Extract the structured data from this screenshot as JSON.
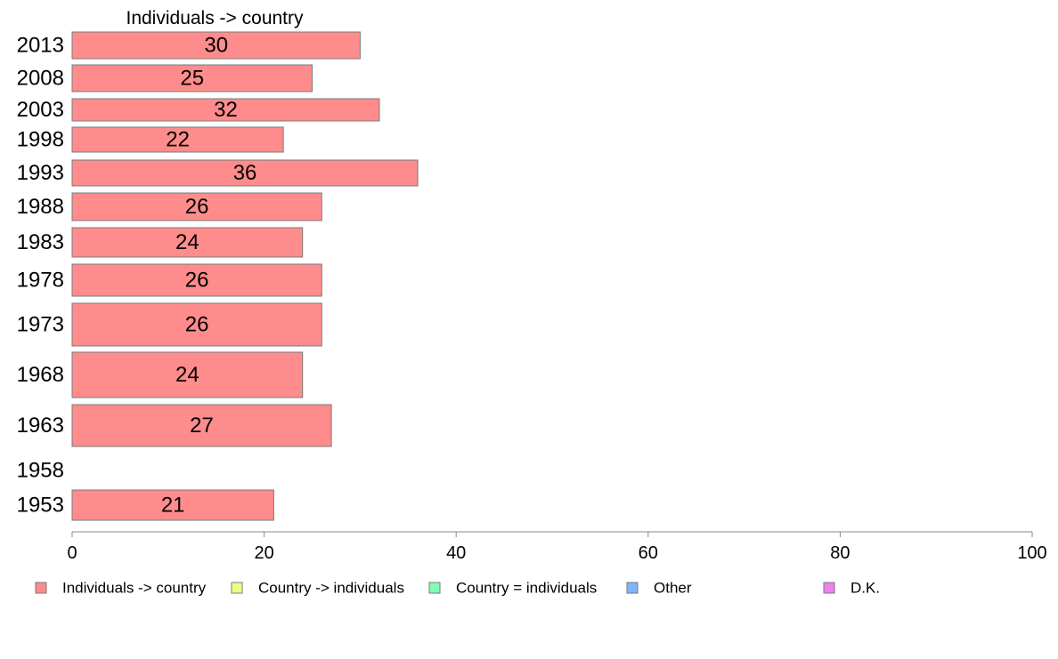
{
  "chart_data": {
    "type": "bar",
    "orientation": "horizontal",
    "title": "Individuals -> country",
    "categories": [
      "2013",
      "2008",
      "2003",
      "1998",
      "1993",
      "1988",
      "1983",
      "1978",
      "1973",
      "1968",
      "1963",
      "1958",
      "1953"
    ],
    "series": [
      {
        "name": "Individuals -> country",
        "color": "#ff8c8c",
        "values": [
          30,
          25,
          32,
          22,
          36,
          26,
          24,
          26,
          26,
          24,
          27,
          null,
          21
        ],
        "labels": [
          "30",
          "25",
          "32",
          "22",
          "36",
          "26",
          "24",
          "26",
          "26",
          "24",
          "27",
          "",
          "21"
        ]
      }
    ],
    "xlim": [
      0,
      100
    ],
    "xticks": [
      0,
      20,
      40,
      60,
      80,
      100
    ],
    "xtick_labels": [
      "0",
      "20",
      "40",
      "60",
      "80",
      "100"
    ],
    "grid": false,
    "legend_position": "bottom",
    "legend": [
      {
        "label": "Individuals -> country",
        "color": "#ff8c8c"
      },
      {
        "label": "Country -> individuals",
        "color": "#f0ff80"
      },
      {
        "label": "Country = individuals",
        "color": "#80ffb4"
      },
      {
        "label": "Other",
        "color": "#80b4ff"
      },
      {
        "label": "D.K.",
        "color": "#f080f0"
      }
    ]
  }
}
